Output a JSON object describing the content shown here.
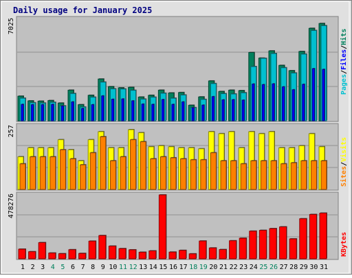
{
  "title": "Daily usage for January 2025",
  "colors": {
    "hits": "#00805c",
    "files": "#0000ff",
    "pages": "#00c0d0",
    "visits": "#ffff00",
    "sites": "#ff8000",
    "kbytes": "#ff0000",
    "weekend_label": "#00805c",
    "weekday_label": "#000000",
    "title": "#000080",
    "panel_bg": "#c0c0c0",
    "frame_bg": "#e0e0e0"
  },
  "chart_data": [
    {
      "type": "bar",
      "panel": "hits-files-pages",
      "ylabel_max": "7025",
      "ylim": [
        0,
        7025
      ],
      "legend": [
        "Pages",
        "Files",
        "Hits"
      ],
      "legend_separator": "/",
      "categories": [
        "1",
        "2",
        "3",
        "4",
        "5",
        "6",
        "7",
        "8",
        "9",
        "10",
        "11",
        "12",
        "13",
        "14",
        "15",
        "16",
        "17",
        "18",
        "19",
        "20",
        "21",
        "22",
        "23",
        "24",
        "25",
        "26",
        "27",
        "28",
        "29",
        "30",
        "31"
      ],
      "weekend": [
        false,
        false,
        false,
        true,
        true,
        false,
        false,
        false,
        false,
        false,
        true,
        true,
        false,
        false,
        false,
        false,
        false,
        true,
        true,
        false,
        false,
        false,
        false,
        false,
        true,
        true,
        false,
        false,
        false,
        false,
        false
      ],
      "series": [
        {
          "name": "Hits",
          "values": [
            1680,
            1360,
            1340,
            1380,
            1210,
            2090,
            1100,
            1740,
            2850,
            2330,
            2250,
            2280,
            1620,
            1740,
            2090,
            1900,
            1930,
            1060,
            1630,
            2720,
            2000,
            2090,
            2060,
            4660,
            4280,
            4770,
            3780,
            3420,
            4730,
            6310,
            6640
          ]
        },
        {
          "name": "Files",
          "values": [
            1120,
            1100,
            1100,
            1120,
            1010,
            1290,
            840,
            1100,
            1700,
            1470,
            1490,
            1360,
            1140,
            1120,
            1450,
            1120,
            1290,
            890,
            1070,
            1650,
            1430,
            1440,
            1410,
            2510,
            2470,
            2520,
            2320,
            2120,
            2490,
            3560,
            3510
          ]
        },
        {
          "name": "Pages",
          "values": [
            1540,
            1230,
            1210,
            1260,
            1020,
            1860,
            940,
            1610,
            2640,
            2180,
            2170,
            2080,
            1480,
            1610,
            1880,
            1540,
            1760,
            900,
            1460,
            2540,
            1850,
            1830,
            1910,
            3700,
            4260,
            4590,
            3620,
            3260,
            4550,
            6160,
            6490
          ]
        }
      ]
    },
    {
      "type": "bar",
      "panel": "visits-sites",
      "ylabel_max": "257",
      "ylim": [
        0,
        257
      ],
      "legend": [
        "Sites",
        "Visits"
      ],
      "legend_separator": "/",
      "series": [
        {
          "name": "Visits",
          "values": [
            130,
            166,
            166,
            166,
            198,
            158,
            114,
            198,
            230,
            166,
            166,
            238,
            226,
            170,
            174,
            170,
            166,
            166,
            162,
            230,
            222,
            230,
            166,
            230,
            222,
            230,
            166,
            166,
            174,
            222,
            170
          ]
        },
        {
          "name": "Sites",
          "values": [
            102,
            130,
            130,
            130,
            158,
            122,
            98,
            146,
            210,
            114,
            130,
            198,
            190,
            122,
            130,
            126,
            122,
            118,
            118,
            146,
            114,
            114,
            102,
            114,
            114,
            114,
            102,
            106,
            114,
            114,
            114
          ]
        }
      ]
    },
    {
      "type": "bar",
      "panel": "kbytes",
      "ylabel_max": "478276",
      "ylim": [
        0,
        478276
      ],
      "legend": [
        "KBytes"
      ],
      "series": [
        {
          "name": "KBytes",
          "values": [
            72000,
            53000,
            121000,
            43000,
            38000,
            68000,
            40000,
            132000,
            174000,
            95000,
            76000,
            67000,
            49000,
            59000,
            478276,
            50000,
            63000,
            37000,
            133000,
            81000,
            69000,
            135000,
            154000,
            207000,
            213000,
            226000,
            239000,
            149000,
            300000,
            332000,
            342000
          ]
        }
      ]
    }
  ]
}
